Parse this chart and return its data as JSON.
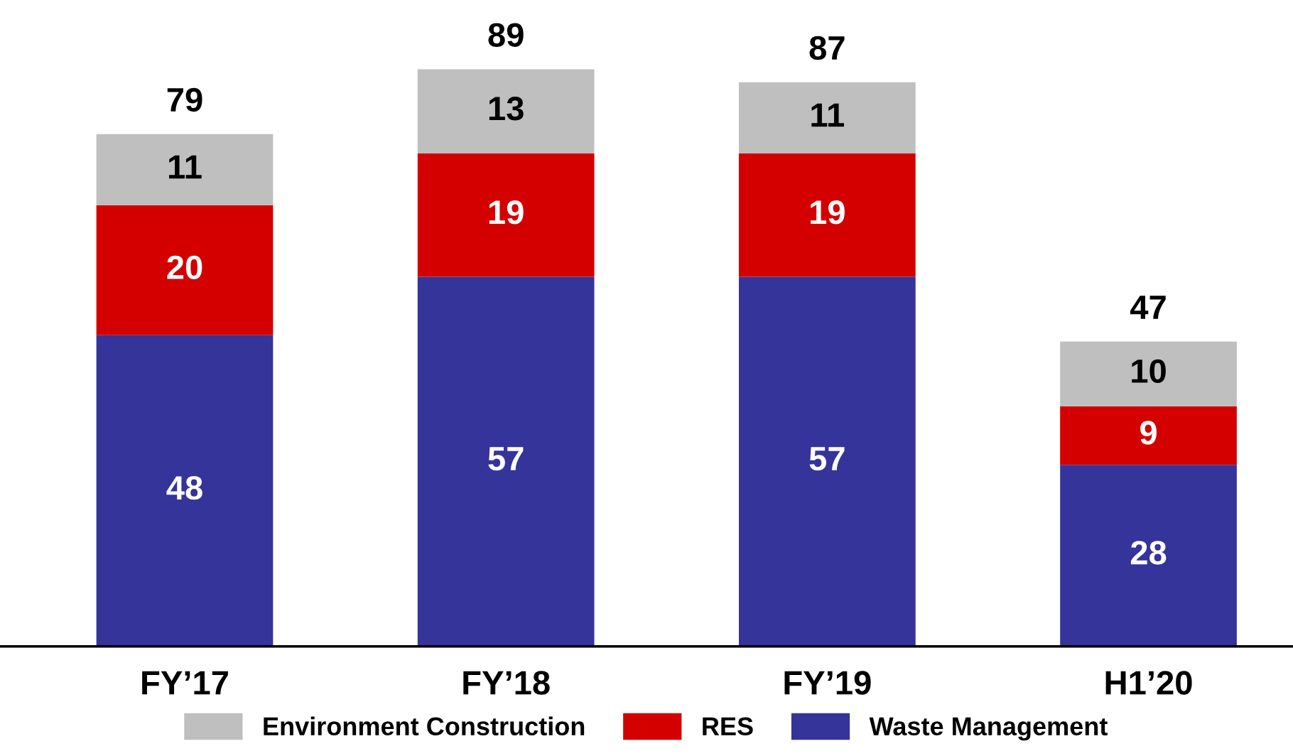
{
  "chart_data": {
    "type": "bar",
    "stacked": true,
    "categories": [
      "FY’17",
      "FY’18",
      "FY’19",
      "H1’20"
    ],
    "series": [
      {
        "name": "Waste Management",
        "color": "#35349a",
        "values": [
          48,
          57,
          57,
          28
        ]
      },
      {
        "name": "RES",
        "color": "#d40000",
        "values": [
          20,
          19,
          19,
          9
        ]
      },
      {
        "name": "Environment Construction",
        "color": "#bfbfbf",
        "values": [
          11,
          13,
          11,
          10
        ]
      }
    ],
    "totals": [
      "79",
      "89",
      "87",
      "47"
    ],
    "data_labels": true,
    "grid": false,
    "legend": "bottom"
  }
}
